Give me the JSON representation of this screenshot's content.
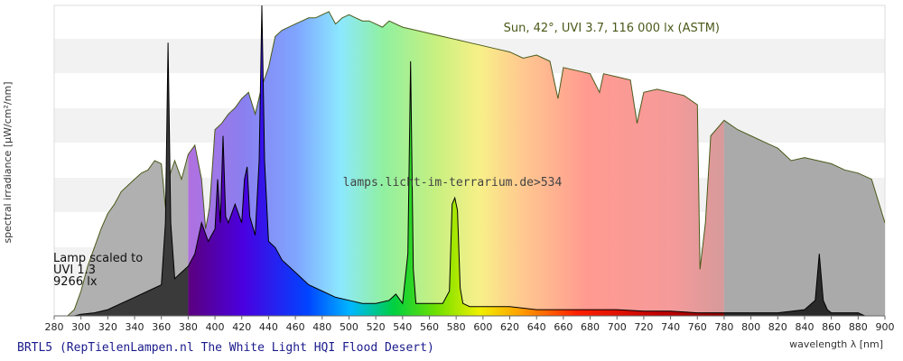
{
  "footer_title": "BRTL5 (RepTielenLampen.nl The White Light HQI Flood Desert)",
  "chart_data": {
    "type": "area",
    "xlabel": "wavelength λ [nm]",
    "ylabel": "spectral irradiance [µW/cm²/nm]",
    "xlim": [
      280,
      900
    ],
    "x_ticks": [
      280,
      300,
      320,
      340,
      360,
      380,
      400,
      420,
      440,
      460,
      480,
      500,
      520,
      540,
      560,
      580,
      600,
      620,
      640,
      660,
      680,
      700,
      720,
      740,
      760,
      780,
      800,
      820,
      840,
      860,
      880,
      900
    ],
    "grid": "horizontal bands",
    "annotations": {
      "sun": "Sun, 42°, UVI 3.7, 116 000 lx (ASTM)",
      "watermark": "lamps.licht-im-terrarium.de>534",
      "lamp_lines": [
        "Lamp scaled to",
        "UVI 1.3",
        "9266 lx"
      ]
    },
    "series": [
      {
        "name": "Sun, 42°, UVI 3.7, 116 000 lx (ASTM)",
        "x": [
          290,
          295,
          300,
          305,
          310,
          315,
          320,
          325,
          330,
          335,
          340,
          345,
          350,
          355,
          360,
          363,
          366,
          370,
          375,
          380,
          385,
          390,
          393,
          396,
          400,
          405,
          410,
          415,
          420,
          425,
          430,
          435,
          440,
          445,
          450,
          455,
          460,
          465,
          470,
          475,
          480,
          485,
          490,
          495,
          500,
          505,
          510,
          515,
          520,
          525,
          530,
          540,
          550,
          560,
          570,
          580,
          590,
          600,
          610,
          620,
          630,
          640,
          650,
          656,
          660,
          670,
          680,
          687,
          690,
          700,
          710,
          715,
          720,
          730,
          740,
          750,
          760,
          762,
          766,
          770,
          780,
          790,
          800,
          810,
          820,
          830,
          840,
          850,
          860,
          870,
          880,
          890,
          900
        ],
        "y": [
          0,
          0.02,
          0.08,
          0.16,
          0.22,
          0.28,
          0.33,
          0.36,
          0.4,
          0.42,
          0.44,
          0.46,
          0.47,
          0.5,
          0.49,
          0.35,
          0.45,
          0.5,
          0.44,
          0.52,
          0.55,
          0.44,
          0.28,
          0.35,
          0.6,
          0.62,
          0.65,
          0.67,
          0.7,
          0.72,
          0.65,
          0.74,
          0.8,
          0.9,
          0.92,
          0.93,
          0.94,
          0.95,
          0.96,
          0.96,
          0.97,
          0.98,
          0.94,
          0.96,
          0.97,
          0.96,
          0.95,
          0.95,
          0.94,
          0.93,
          0.95,
          0.93,
          0.92,
          0.91,
          0.9,
          0.89,
          0.88,
          0.87,
          0.86,
          0.85,
          0.83,
          0.84,
          0.82,
          0.7,
          0.8,
          0.79,
          0.78,
          0.72,
          0.78,
          0.77,
          0.76,
          0.62,
          0.72,
          0.73,
          0.72,
          0.71,
          0.68,
          0.15,
          0.3,
          0.58,
          0.63,
          0.6,
          0.58,
          0.56,
          0.54,
          0.5,
          0.51,
          0.5,
          0.49,
          0.47,
          0.46,
          0.44,
          0.3
        ]
      },
      {
        "name": "Lamp scaled to UVI 1.3, 9266 lx",
        "x": [
          295,
          300,
          310,
          320,
          330,
          340,
          350,
          360,
          363,
          365,
          367,
          370,
          375,
          380,
          385,
          390,
          395,
          400,
          402,
          404,
          406,
          408,
          410,
          415,
          420,
          422,
          424,
          426,
          430,
          433,
          435,
          437,
          440,
          445,
          450,
          460,
          470,
          480,
          490,
          500,
          510,
          520,
          530,
          535,
          540,
          544,
          546,
          548,
          550,
          560,
          570,
          575,
          577,
          579,
          581,
          583,
          585,
          590,
          600,
          610,
          620,
          640,
          660,
          680,
          700,
          720,
          740,
          760,
          780,
          800,
          820,
          840,
          848,
          851,
          854,
          857,
          860,
          870,
          880,
          885
        ],
        "y": [
          0,
          0.005,
          0.01,
          0.02,
          0.04,
          0.06,
          0.08,
          0.1,
          0.3,
          0.88,
          0.3,
          0.12,
          0.14,
          0.16,
          0.2,
          0.3,
          0.24,
          0.28,
          0.44,
          0.3,
          0.58,
          0.32,
          0.3,
          0.36,
          0.3,
          0.44,
          0.48,
          0.32,
          0.26,
          0.5,
          1.0,
          0.5,
          0.24,
          0.22,
          0.18,
          0.14,
          0.1,
          0.08,
          0.06,
          0.05,
          0.04,
          0.04,
          0.05,
          0.07,
          0.04,
          0.2,
          0.82,
          0.15,
          0.04,
          0.04,
          0.04,
          0.08,
          0.36,
          0.38,
          0.34,
          0.09,
          0.04,
          0.03,
          0.03,
          0.03,
          0.03,
          0.02,
          0.02,
          0.02,
          0.02,
          0.015,
          0.015,
          0.01,
          0.01,
          0.01,
          0.01,
          0.02,
          0.05,
          0.2,
          0.05,
          0.02,
          0.01,
          0.01,
          0.01,
          0
        ]
      }
    ]
  }
}
